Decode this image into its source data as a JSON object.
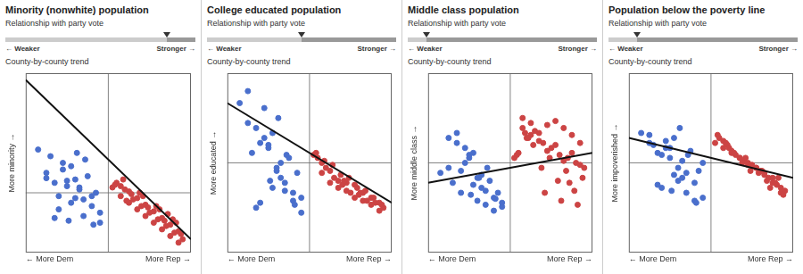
{
  "chart_data": [
    {
      "type": "scatter",
      "title": "Minority (nonwhite) population",
      "subtitle": "Relationship with party vote",
      "slider": 0.85,
      "slider_labels": [
        "← Weaker",
        "Stronger →"
      ],
      "annotation": "County-by-county trend",
      "ylabel": "More minority →",
      "xlabel": [
        "← More Dem",
        "More Rep →"
      ],
      "xlim": [
        -1,
        1
      ],
      "ylim": [
        -0.9,
        1.8
      ],
      "reference_lines": {
        "x": 0,
        "y": 0
      },
      "grid": false,
      "legend": false,
      "tick_labels": false,
      "series": [
        {
          "color": "#4a6fcc",
          "marker": "circle",
          "x": [
            -0.85,
            -0.55,
            -0.75,
            -0.45,
            -0.65,
            -0.5,
            -0.4,
            -0.35,
            -0.6,
            -0.7,
            -0.3,
            -0.2,
            -0.1,
            -0.15,
            -0.25,
            -0.55,
            -0.45,
            -0.6,
            -0.35,
            -0.4,
            -0.5,
            -0.75,
            -0.3,
            -0.2,
            -0.65,
            -0.1,
            -0.38,
            -0.28,
            -0.48,
            -0.18
          ],
          "values": [
            0.65,
            0.45,
            0.3,
            0.4,
            0.15,
            0.1,
            0.2,
            0.05,
            -0.05,
            0.55,
            -0.1,
            -0.2,
            -0.3,
            0.0,
            0.25,
            0.35,
            -0.15,
            -0.25,
            0.08,
            -0.08,
            0.18,
            0.22,
            -0.35,
            -0.05,
            -0.38,
            -0.45,
            0.6,
            0.5,
            -0.42,
            -0.48
          ]
        },
        {
          "color": "#cc4444",
          "marker": "circle",
          "x": [
            0.05,
            0.15,
            0.25,
            0.35,
            0.45,
            0.55,
            0.65,
            0.75,
            0.85,
            0.1,
            0.2,
            0.3,
            0.4,
            0.5,
            0.6,
            0.7,
            0.8,
            0.9,
            0.15,
            0.35,
            0.55,
            0.75,
            0.25,
            0.45,
            0.65,
            0.85,
            0.08,
            0.28,
            0.48,
            0.68,
            0.88,
            0.18,
            0.38,
            0.58,
            0.78,
            0.42,
            0.62,
            0.82,
            0.22,
            0.72
          ],
          "values": [
            0.08,
            -0.05,
            -0.15,
            -0.25,
            -0.35,
            -0.45,
            -0.55,
            -0.65,
            -0.75,
            0.15,
            0.05,
            -0.1,
            -0.2,
            -0.3,
            -0.4,
            -0.5,
            -0.6,
            -0.7,
            0.1,
            -0.08,
            -0.28,
            -0.48,
            0.02,
            -0.18,
            -0.38,
            -0.58,
            0.12,
            -0.02,
            -0.22,
            -0.42,
            -0.62,
            0.2,
            0.0,
            -0.2,
            -0.4,
            -0.05,
            -0.25,
            -0.45,
            -0.12,
            -0.32
          ]
        },
        {
          "type": "line",
          "color": "#111111",
          "line_style": "solid",
          "x": [
            -1,
            1
          ],
          "values": [
            1.7,
            -0.7
          ]
        }
      ]
    },
    {
      "type": "scatter",
      "title": "College educated population",
      "subtitle": "Relationship with party vote",
      "slider": 0.5,
      "slider_labels": [
        "← Weaker",
        "Stronger →"
      ],
      "annotation": "County-by-county trend",
      "ylabel": "More educated →",
      "xlabel": [
        "← More Dem",
        "More Rep →"
      ],
      "xlim": [
        -1,
        1
      ],
      "ylim": [
        -0.9,
        0.9
      ],
      "reference_lines": {
        "x": 0,
        "y": 0
      },
      "grid": false,
      "legend": false,
      "tick_labels": false,
      "series": [
        {
          "color": "#4a6fcc",
          "marker": "circle",
          "x": [
            -0.85,
            -0.75,
            -0.55,
            -0.45,
            -0.65,
            -0.5,
            -0.4,
            -0.35,
            -0.6,
            -0.7,
            -0.3,
            -0.2,
            -0.1,
            -0.15,
            -0.25,
            -0.55,
            -0.45,
            -0.6,
            -0.35,
            -0.4,
            -0.5,
            -0.75,
            -0.3,
            -0.2,
            -0.65,
            -0.1,
            -0.38,
            -0.28,
            -0.48,
            -0.18
          ],
          "values": [
            0.6,
            0.72,
            0.55,
            0.3,
            0.35,
            0.15,
            -0.05,
            -0.15,
            0.2,
            0.1,
            -0.2,
            -0.3,
            -0.35,
            -0.1,
            0.05,
            0.25,
            -0.25,
            -0.4,
            0.0,
            -0.08,
            0.18,
            0.4,
            -0.28,
            -0.38,
            -0.45,
            -0.5,
            0.45,
            0.08,
            -0.18,
            -0.42
          ]
        },
        {
          "color": "#cc4444",
          "marker": "circle",
          "x": [
            0.05,
            0.15,
            0.25,
            0.35,
            0.45,
            0.55,
            0.65,
            0.75,
            0.85,
            0.1,
            0.2,
            0.3,
            0.4,
            0.5,
            0.6,
            0.7,
            0.8,
            0.9,
            0.15,
            0.35,
            0.55,
            0.75,
            0.25,
            0.45,
            0.65,
            0.85,
            0.08,
            0.28,
            0.48,
            0.68,
            0.88,
            0.18,
            0.38,
            0.58,
            0.78,
            0.42,
            0.62
          ],
          "values": [
            0.08,
            -0.1,
            -0.2,
            -0.25,
            -0.28,
            -0.35,
            -0.38,
            -0.42,
            -0.48,
            0.05,
            -0.05,
            -0.15,
            -0.22,
            -0.3,
            -0.32,
            -0.38,
            -0.4,
            -0.45,
            0.0,
            -0.18,
            -0.22,
            -0.35,
            -0.08,
            -0.2,
            -0.3,
            -0.4,
            0.1,
            -0.02,
            -0.15,
            -0.28,
            -0.42,
            0.02,
            -0.12,
            -0.25,
            -0.35,
            -0.18,
            -0.3
          ]
        },
        {
          "type": "line",
          "color": "#111111",
          "line_style": "solid",
          "x": [
            -1,
            1
          ],
          "values": [
            0.6,
            -0.4
          ]
        }
      ]
    },
    {
      "type": "scatter",
      "title": "Middle class population",
      "subtitle": "Relationship with party vote",
      "slider": 0.1,
      "slider_labels": [
        "← Weaker",
        "Stronger →"
      ],
      "annotation": "County-by-county trend",
      "ylabel": "More middle class →",
      "xlabel": [
        "← More Dem",
        "More Rep →"
      ],
      "xlim": [
        -1,
        1
      ],
      "ylim": [
        -0.9,
        0.9
      ],
      "reference_lines": {
        "x": 0,
        "y": 0
      },
      "grid": false,
      "legend": false,
      "tick_labels": false,
      "series": [
        {
          "color": "#4a6fcc",
          "marker": "circle",
          "x": [
            -0.85,
            -0.75,
            -0.55,
            -0.45,
            -0.65,
            -0.5,
            -0.4,
            -0.35,
            -0.6,
            -0.7,
            -0.3,
            -0.2,
            -0.1,
            -0.15,
            -0.25,
            -0.55,
            -0.45,
            -0.6,
            -0.35,
            -0.4,
            -0.5,
            -0.75,
            -0.3,
            -0.2,
            -0.65,
            -0.1,
            -0.38,
            -0.28,
            -0.48,
            -0.18
          ],
          "values": [
            -0.1,
            -0.05,
            0.15,
            0.1,
            0.2,
            0.05,
            -0.15,
            -0.25,
            -0.08,
            -0.2,
            -0.28,
            -0.35,
            -0.4,
            -0.3,
            -0.18,
            0.0,
            -0.22,
            -0.3,
            -0.12,
            -0.38,
            0.08,
            0.25,
            -0.42,
            -0.48,
            0.3,
            -0.44,
            -0.15,
            -0.05,
            -0.32,
            -0.36
          ]
        },
        {
          "color": "#cc4444",
          "marker": "circle",
          "x": [
            0.05,
            0.15,
            0.25,
            0.35,
            0.45,
            0.55,
            0.65,
            0.75,
            0.85,
            0.1,
            0.2,
            0.3,
            0.4,
            0.5,
            0.6,
            0.7,
            0.8,
            0.9,
            0.15,
            0.35,
            0.55,
            0.75,
            0.25,
            0.45,
            0.65,
            0.85,
            0.08,
            0.28,
            0.48,
            0.68,
            0.88,
            0.18,
            0.38,
            0.58,
            0.78,
            0.42,
            0.62,
            0.82,
            0.22,
            0.72
          ],
          "values": [
            0.05,
            0.35,
            0.4,
            0.3,
            0.38,
            0.42,
            0.35,
            0.28,
            0.2,
            0.1,
            0.25,
            0.32,
            0.2,
            0.15,
            0.08,
            0.05,
            0.0,
            -0.05,
            0.45,
            0.22,
            0.18,
            0.1,
            0.28,
            0.12,
            0.02,
            -0.02,
            0.08,
            0.18,
            0.05,
            -0.08,
            -0.15,
            0.3,
            -0.05,
            -0.18,
            -0.28,
            -0.3,
            -0.38,
            -0.42,
            0.25,
            -0.2
          ]
        },
        {
          "type": "line",
          "color": "#111111",
          "line_style": "solid",
          "x": [
            -1,
            1
          ],
          "values": [
            -0.2,
            0.1
          ]
        }
      ]
    },
    {
      "type": "scatter",
      "title": "Population below the poverty line",
      "subtitle": "Relationship with party vote",
      "slider": 0.15,
      "slider_labels": [
        "← Weaker",
        "Stronger →"
      ],
      "annotation": "County-by-county trend",
      "ylabel": "More impoverished →",
      "xlabel": [
        "← More Dem",
        "More Rep →"
      ],
      "xlim": [
        -1,
        1
      ],
      "ylim": [
        -0.9,
        0.9
      ],
      "reference_lines": {
        "x": 0,
        "y": 0
      },
      "grid": false,
      "legend": false,
      "tick_labels": false,
      "series": [
        {
          "color": "#4a6fcc",
          "marker": "circle",
          "x": [
            -0.85,
            -0.75,
            -0.55,
            -0.45,
            -0.65,
            -0.5,
            -0.4,
            -0.35,
            -0.6,
            -0.7,
            -0.3,
            -0.2,
            -0.1,
            -0.15,
            -0.25,
            -0.55,
            -0.45,
            -0.6,
            -0.35,
            -0.4,
            -0.5,
            -0.75,
            -0.3,
            -0.2,
            -0.65,
            -0.1,
            -0.38,
            -0.28,
            -0.48,
            -0.18
          ],
          "values": [
            0.3,
            0.2,
            0.15,
            0.25,
            0.1,
            0.05,
            -0.05,
            -0.15,
            0.08,
            0.18,
            -0.1,
            -0.2,
            0.0,
            -0.08,
            0.12,
            0.22,
            -0.12,
            -0.25,
            0.02,
            -0.18,
            0.15,
            0.28,
            -0.3,
            -0.38,
            -0.22,
            -0.35,
            0.35,
            0.08,
            -0.28,
            -0.4
          ]
        },
        {
          "color": "#cc4444",
          "marker": "circle",
          "x": [
            0.05,
            0.15,
            0.25,
            0.35,
            0.45,
            0.55,
            0.65,
            0.75,
            0.85,
            0.1,
            0.2,
            0.3,
            0.4,
            0.5,
            0.6,
            0.7,
            0.8,
            0.9,
            0.15,
            0.35,
            0.55,
            0.75,
            0.25,
            0.45,
            0.65,
            0.85,
            0.08,
            0.28,
            0.48,
            0.68,
            0.88,
            0.18,
            0.38,
            0.58,
            0.78,
            0.42,
            0.62,
            0.82,
            0.22,
            0.72
          ],
          "values": [
            0.2,
            0.15,
            0.1,
            0.05,
            0.0,
            -0.05,
            -0.1,
            -0.2,
            -0.3,
            0.25,
            0.18,
            0.08,
            0.02,
            -0.02,
            -0.08,
            -0.15,
            -0.22,
            -0.28,
            0.22,
            0.05,
            -0.05,
            -0.15,
            0.12,
            -0.02,
            -0.12,
            -0.25,
            0.28,
            0.1,
            -0.08,
            -0.18,
            -0.32,
            0.2,
            0.0,
            -0.1,
            -0.2,
            0.05,
            -0.08,
            -0.15,
            0.15,
            -0.25
          ]
        },
        {
          "type": "line",
          "color": "#111111",
          "line_style": "solid",
          "x": [
            -1,
            1
          ],
          "values": [
            0.25,
            -0.15
          ]
        }
      ]
    }
  ]
}
